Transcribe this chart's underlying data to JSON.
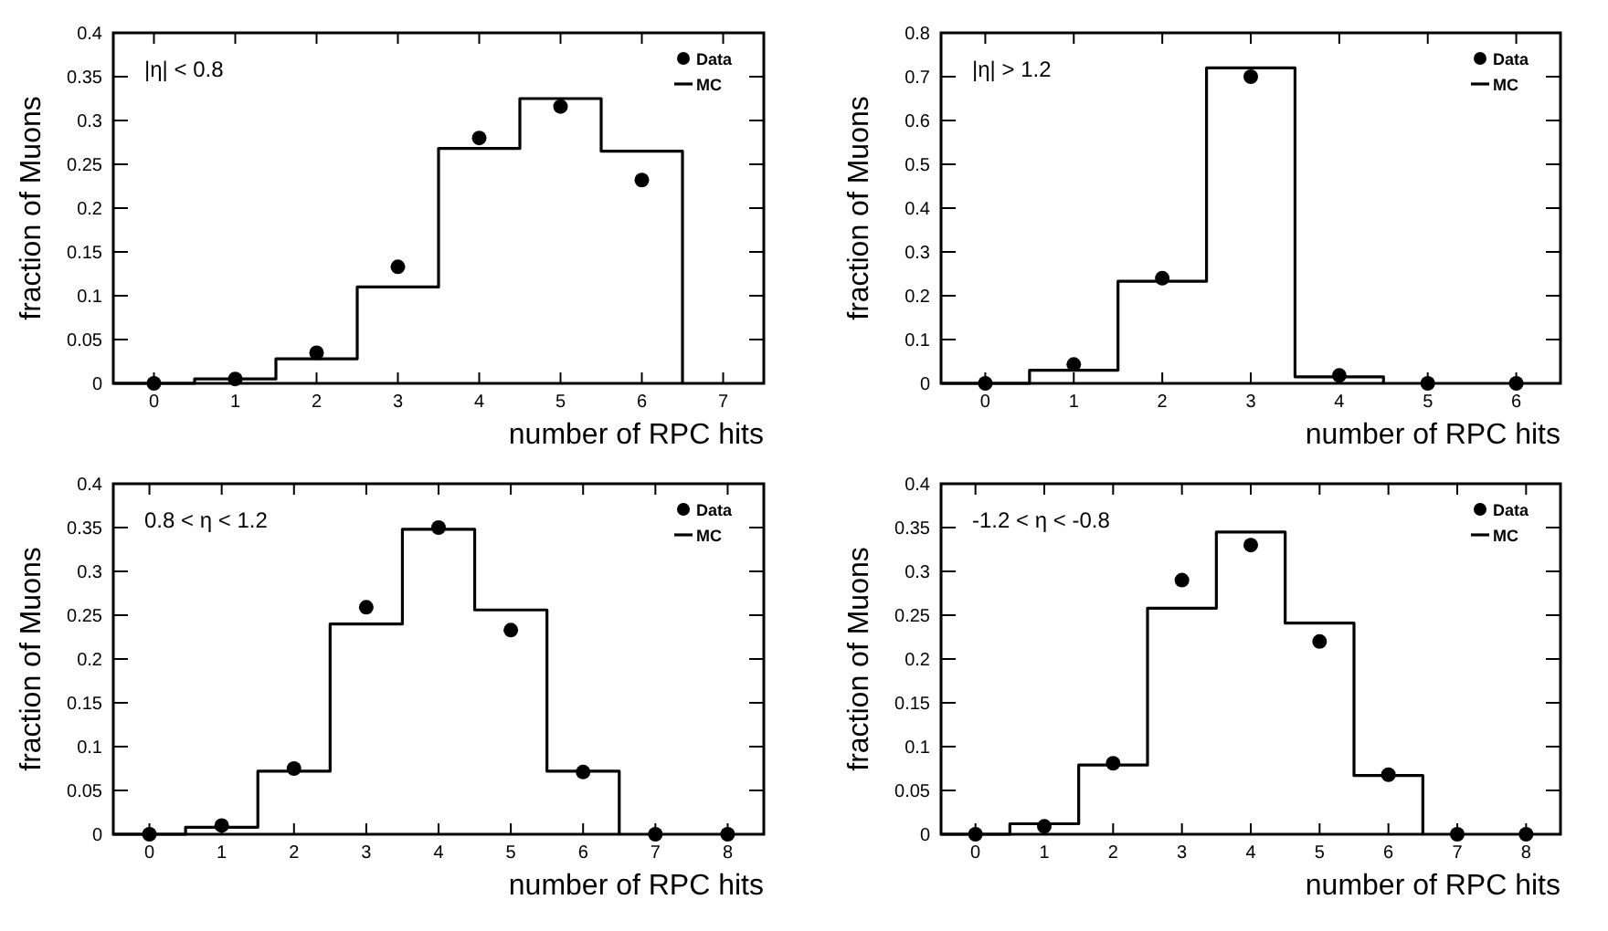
{
  "chart_data": [
    {
      "type": "histogram",
      "xlabel": "number of RPC hits",
      "ylabel": "fraction of Muons",
      "annotations": [
        "|η| < 0.8"
      ],
      "legend": "top right",
      "xlim": [
        -0.5,
        7.5
      ],
      "xticks": [
        0,
        1,
        2,
        3,
        4,
        5,
        6,
        7
      ],
      "ylim": [
        0,
        0.4
      ],
      "yticks": [
        0,
        0.05,
        0.1,
        0.15,
        0.2,
        0.25,
        0.3,
        0.35,
        0.4
      ],
      "bins": [
        -0.5,
        0.5,
        1.5,
        2.5,
        3.5,
        4.5,
        5.5,
        6.5
      ],
      "series": [
        {
          "name": "Data",
          "type": "scatter",
          "marker": "circle",
          "color": "#000000",
          "x": [
            0,
            1,
            2,
            3,
            4,
            5,
            6
          ],
          "values": [
            0,
            0.005,
            0.035,
            0.133,
            0.28,
            0.316,
            0.232
          ]
        },
        {
          "name": "MC",
          "color": "#000000",
          "values": [
            0,
            0.005,
            0.028,
            0.11,
            0.268,
            0.325,
            0.265
          ]
        }
      ]
    },
    {
      "type": "histogram",
      "xlabel": "number of RPC hits",
      "ylabel": "fraction of Muons",
      "annotations": [
        "|η| > 1.2"
      ],
      "legend": "top right",
      "xlim": [
        -0.5,
        6.5
      ],
      "xticks": [
        0,
        1,
        2,
        3,
        4,
        5,
        6
      ],
      "ylim": [
        0,
        0.8
      ],
      "yticks": [
        0,
        0.1,
        0.2,
        0.3,
        0.4,
        0.5,
        0.6,
        0.7,
        0.8
      ],
      "bins": [
        -0.5,
        0.5,
        1.5,
        2.5,
        3.5,
        4.5
      ],
      "series": [
        {
          "name": "Data",
          "type": "scatter",
          "marker": "circle",
          "color": "#000000",
          "x": [
            0,
            1,
            2,
            3,
            4,
            5,
            6
          ],
          "values": [
            0,
            0.043,
            0.24,
            0.7,
            0.018,
            0,
            0
          ]
        },
        {
          "name": "MC",
          "color": "#000000",
          "values": [
            0,
            0.03,
            0.233,
            0.72,
            0.015
          ]
        }
      ]
    },
    {
      "type": "histogram",
      "xlabel": "number of RPC hits",
      "ylabel": "fraction of Muons",
      "annotations": [
        "0.8 < η < 1.2"
      ],
      "legend": "top right",
      "xlim": [
        -0.5,
        8.5
      ],
      "xticks": [
        0,
        1,
        2,
        3,
        4,
        5,
        6,
        7,
        8
      ],
      "ylim": [
        0,
        0.4
      ],
      "yticks": [
        0,
        0.05,
        0.1,
        0.15,
        0.2,
        0.25,
        0.3,
        0.35,
        0.4
      ],
      "bins": [
        -0.5,
        0.5,
        1.5,
        2.5,
        3.5,
        4.5,
        5.5,
        6.5
      ],
      "series": [
        {
          "name": "Data",
          "type": "scatter",
          "marker": "circle",
          "color": "#000000",
          "x": [
            0,
            1,
            2,
            3,
            4,
            5,
            6,
            7,
            8
          ],
          "values": [
            0,
            0.01,
            0.075,
            0.259,
            0.35,
            0.233,
            0.071,
            0,
            0
          ]
        },
        {
          "name": "MC",
          "color": "#000000",
          "values": [
            0,
            0.008,
            0.072,
            0.24,
            0.348,
            0.256,
            0.072
          ]
        }
      ]
    },
    {
      "type": "histogram",
      "xlabel": "number of RPC hits",
      "ylabel": "fraction of Muons",
      "annotations": [
        "-1.2 < η < -0.8"
      ],
      "legend": "top right",
      "xlim": [
        -0.5,
        8.5
      ],
      "xticks": [
        0,
        1,
        2,
        3,
        4,
        5,
        6,
        7,
        8
      ],
      "ylim": [
        0,
        0.4
      ],
      "yticks": [
        0,
        0.05,
        0.1,
        0.15,
        0.2,
        0.25,
        0.3,
        0.35,
        0.4
      ],
      "bins": [
        -0.5,
        0.5,
        1.5,
        2.5,
        3.5,
        4.5,
        5.5,
        6.5
      ],
      "series": [
        {
          "name": "Data",
          "type": "scatter",
          "marker": "circle",
          "color": "#000000",
          "x": [
            0,
            1,
            2,
            3,
            4,
            5,
            6,
            7,
            8
          ],
          "values": [
            0,
            0.009,
            0.081,
            0.29,
            0.33,
            0.22,
            0.068,
            0,
            0
          ]
        },
        {
          "name": "MC",
          "color": "#000000",
          "values": [
            0,
            0.012,
            0.079,
            0.258,
            0.345,
            0.241,
            0.067
          ]
        }
      ]
    }
  ]
}
